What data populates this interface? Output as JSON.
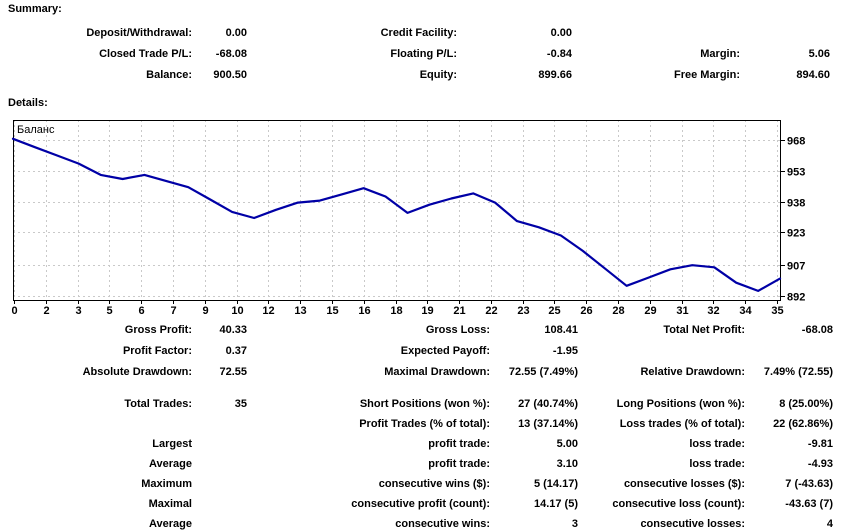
{
  "summary": {
    "heading": "Summary:",
    "rows": [
      {
        "l1": "Deposit/Withdrawal:",
        "v1": "0.00",
        "l2": "Credit Facility:",
        "v2": "0.00",
        "l3": "",
        "v3": ""
      },
      {
        "l1": "Closed Trade P/L:",
        "v1": "-68.08",
        "l2": "Floating P/L:",
        "v2": "-0.84",
        "l3": "Margin:",
        "v3": "5.06"
      },
      {
        "l1": "Balance:",
        "v1": "900.50",
        "l2": "Equity:",
        "v2": "899.66",
        "l3": "Free Margin:",
        "v3": "894.60"
      }
    ]
  },
  "details": {
    "heading": "Details:",
    "rows": [
      {
        "l1": "Gross Profit:",
        "v1": "40.33",
        "l2": "Gross Loss:",
        "v2": "108.41",
        "l3": "Total Net Profit:",
        "v3": "-68.08"
      },
      {
        "l1": "Profit Factor:",
        "v1": "0.37",
        "l2": "Expected Payoff:",
        "v2": "-1.95",
        "l3": "",
        "v3": ""
      },
      {
        "l1": "Absolute Drawdown:",
        "v1": "72.55",
        "l2": "Maximal Drawdown:",
        "v2": "72.55 (7.49%)",
        "l3": "Relative Drawdown:",
        "v3": "7.49% (72.55)"
      },
      {
        "l1": "Total Trades:",
        "v1": "35",
        "l2": "Short Positions (won %):",
        "v2": "27 (40.74%)",
        "l3": "Long Positions (won %):",
        "v3": "8 (25.00%)"
      },
      {
        "l1": "",
        "v1": "",
        "l2": "Profit Trades (% of total):",
        "v2": "13 (37.14%)",
        "l3": "Loss trades (% of total):",
        "v3": "22 (62.86%)"
      },
      {
        "l1": "Largest",
        "v1": "",
        "l2": "profit trade:",
        "v2": "5.00",
        "l3": "loss trade:",
        "v3": "-9.81"
      },
      {
        "l1": "Average",
        "v1": "",
        "l2": "profit trade:",
        "v2": "3.10",
        "l3": "loss trade:",
        "v3": "-4.93"
      },
      {
        "l1": "Maximum",
        "v1": "",
        "l2": "consecutive wins ($):",
        "v2": "5 (14.17)",
        "l3": "consecutive losses ($):",
        "v3": "7 (-43.63)"
      },
      {
        "l1": "Maximal",
        "v1": "",
        "l2": "consecutive profit (count):",
        "v2": "14.17 (5)",
        "l3": "consecutive loss (count):",
        "v3": "-43.63 (7)"
      },
      {
        "l1": "Average",
        "v1": "",
        "l2": "consecutive wins:",
        "v2": "3",
        "l3": "consecutive losses:",
        "v3": "4"
      }
    ]
  },
  "chart_data": {
    "type": "line",
    "title": "Баланс",
    "xlabel": "",
    "ylabel": "",
    "grid": true,
    "legend_position": "top-left-inside",
    "xlim": [
      0,
      35
    ],
    "ylim": [
      890,
      977
    ],
    "y_ticks": [
      968,
      953,
      938,
      923,
      907,
      892
    ],
    "x_tick_labels": [
      "0",
      "2",
      "3",
      "5",
      "6",
      "7",
      "9",
      "10",
      "12",
      "13",
      "15",
      "16",
      "18",
      "19",
      "21",
      "22",
      "23",
      "25",
      "26",
      "28",
      "29",
      "31",
      "32",
      "34",
      "35"
    ],
    "series": [
      {
        "name": "Баланс",
        "x": [
          0,
          1,
          2,
          3,
          4,
          5,
          6,
          7,
          8,
          9,
          10,
          11,
          12,
          13,
          14,
          15,
          16,
          17,
          18,
          19,
          20,
          21,
          22,
          23,
          24,
          25,
          26,
          27,
          28,
          29,
          30,
          31,
          32,
          33,
          34,
          35
        ],
        "values": [
          968.58,
          964.5,
          960.5,
          956.5,
          951.0,
          949.0,
          951.0,
          948.0,
          945.0,
          939.0,
          933.0,
          930.0,
          934.0,
          937.5,
          938.5,
          941.5,
          944.5,
          940.5,
          932.5,
          936.5,
          939.5,
          942.0,
          937.5,
          928.5,
          925.5,
          921.5,
          914.0,
          905.5,
          897.0,
          901.0,
          905.0,
          907.0,
          906.0,
          898.5,
          894.5,
          900.5
        ]
      }
    ],
    "colors": {
      "line": "#0000A6",
      "grid": "#c9c9c9",
      "border": "#000000",
      "text": "#000000"
    }
  }
}
